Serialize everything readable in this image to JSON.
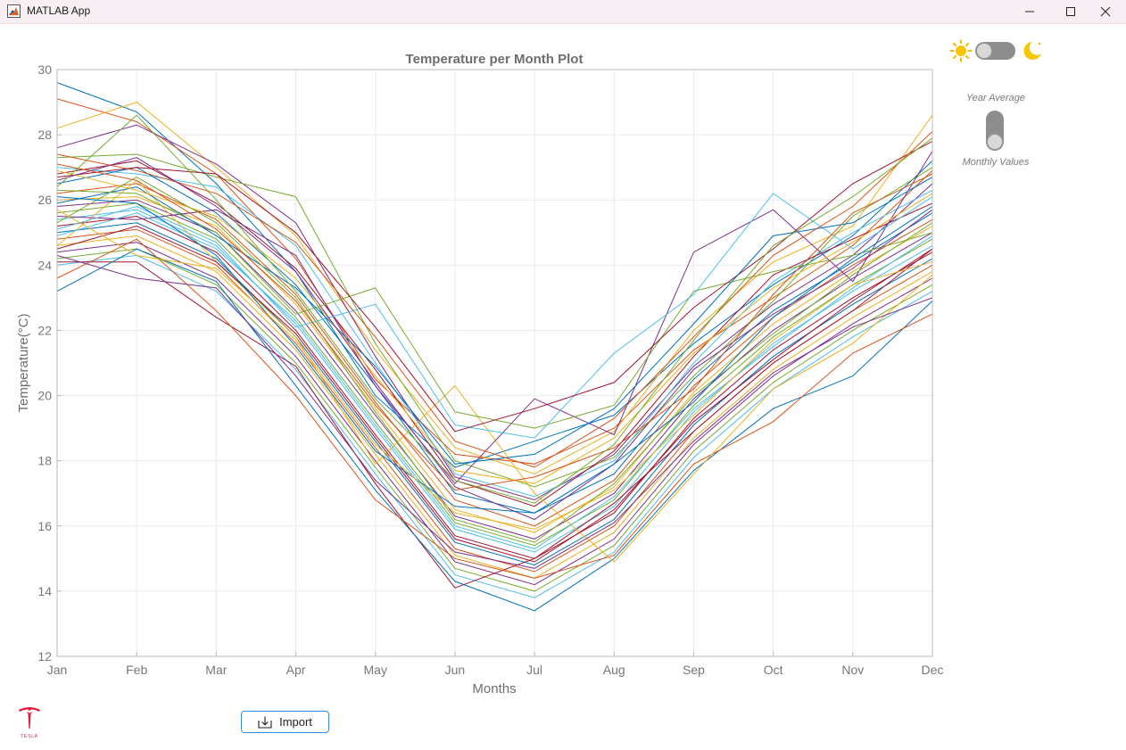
{
  "window": {
    "title": "MATLAB App"
  },
  "theme_toggle": {
    "left_icon": "sun-icon",
    "right_icon": "moon-icon",
    "state": "light"
  },
  "mode_switch": {
    "top_label": "Year Average",
    "bottom_label": "Monthly Values",
    "state": "Monthly Values"
  },
  "import_button": {
    "label": "Import",
    "icon": "import-icon"
  },
  "logo": {
    "brand_text": "TESLA",
    "color": "#e31937"
  },
  "chart_data": {
    "type": "line",
    "title": "Temperature per Month Plot",
    "xlabel": "Months",
    "ylabel": "Temperature(°C)",
    "categories": [
      "Jan",
      "Feb",
      "Mar",
      "Apr",
      "May",
      "Jun",
      "Jul",
      "Aug",
      "Sep",
      "Oct",
      "Nov",
      "Dec"
    ],
    "yticks": [
      12,
      14,
      16,
      18,
      20,
      22,
      24,
      26,
      28,
      30
    ],
    "ylim": [
      12,
      30
    ],
    "grid": true,
    "legend": "none",
    "colors": [
      "#0072BD",
      "#D95319",
      "#EDB120",
      "#7E2F8E",
      "#77AC30",
      "#4DBEEE",
      "#A2142F"
    ],
    "series": [
      {
        "values": [
          29.6,
          28.7,
          26.5,
          23.8,
          20.0,
          17.8,
          18.6,
          19.4,
          21.6,
          23.4,
          24.9,
          27.2
        ]
      },
      {
        "values": [
          29.1,
          28.4,
          26.8,
          24.2,
          20.5,
          18.2,
          17.9,
          19.0,
          21.4,
          23.0,
          24.6,
          26.9
        ]
      },
      {
        "values": [
          28.2,
          29.0,
          27.0,
          24.9,
          21.4,
          18.4,
          17.6,
          18.9,
          22.0,
          24.1,
          25.2,
          28.6
        ]
      },
      {
        "values": [
          27.6,
          28.3,
          27.1,
          25.3,
          21.2,
          17.5,
          16.8,
          18.2,
          20.9,
          22.8,
          24.3,
          26.5
        ]
      },
      {
        "values": [
          27.3,
          27.4,
          26.7,
          26.1,
          21.6,
          18.0,
          17.2,
          18.1,
          20.6,
          22.9,
          25.5,
          27.0
        ]
      },
      {
        "values": [
          27.0,
          26.8,
          26.4,
          24.6,
          21.0,
          17.6,
          16.9,
          18.0,
          21.0,
          23.5,
          25.0,
          26.3
        ]
      },
      {
        "values": [
          26.8,
          27.2,
          25.9,
          23.9,
          20.8,
          17.4,
          16.6,
          18.3,
          21.2,
          23.7,
          24.8,
          25.9
        ]
      },
      {
        "values": [
          26.5,
          27.0,
          25.6,
          23.4,
          20.3,
          17.0,
          16.4,
          17.6,
          20.5,
          22.6,
          24.1,
          25.6
        ]
      },
      {
        "values": [
          26.2,
          26.5,
          25.4,
          23.1,
          19.8,
          16.8,
          16.0,
          17.4,
          20.3,
          22.4,
          24.0,
          25.4
        ]
      },
      {
        "values": [
          26.0,
          26.1,
          25.2,
          22.8,
          19.6,
          16.5,
          15.8,
          17.2,
          20.1,
          22.2,
          23.8,
          25.2
        ]
      },
      {
        "values": [
          25.8,
          26.0,
          25.0,
          22.6,
          19.4,
          16.3,
          15.6,
          17.0,
          19.9,
          22.0,
          23.6,
          25.0
        ]
      },
      {
        "values": [
          25.6,
          25.9,
          24.8,
          22.4,
          19.2,
          16.1,
          15.4,
          16.8,
          19.7,
          21.8,
          23.4,
          24.8
        ]
      },
      {
        "values": [
          25.4,
          25.7,
          24.6,
          22.2,
          19.0,
          15.9,
          15.2,
          16.6,
          19.5,
          21.6,
          23.2,
          24.6
        ]
      },
      {
        "values": [
          25.2,
          25.5,
          24.4,
          22.0,
          18.8,
          15.7,
          15.0,
          16.4,
          19.3,
          21.4,
          23.0,
          24.4
        ]
      },
      {
        "values": [
          25.0,
          25.3,
          24.2,
          21.8,
          18.6,
          15.5,
          14.8,
          16.2,
          19.1,
          21.2,
          22.8,
          24.2
        ]
      },
      {
        "values": [
          24.8,
          25.1,
          24.0,
          21.6,
          18.4,
          15.3,
          14.6,
          16.0,
          18.9,
          21.0,
          22.6,
          24.0
        ]
      },
      {
        "values": [
          24.6,
          24.9,
          23.8,
          21.4,
          18.2,
          15.1,
          14.4,
          15.8,
          18.7,
          20.8,
          22.4,
          23.8
        ]
      },
      {
        "values": [
          24.4,
          24.7,
          23.6,
          21.2,
          18.0,
          14.9,
          14.2,
          15.6,
          18.5,
          20.6,
          22.2,
          23.6
        ]
      },
      {
        "values": [
          24.2,
          24.5,
          23.4,
          21.0,
          17.8,
          14.7,
          14.0,
          15.4,
          18.3,
          20.4,
          22.0,
          23.4
        ]
      },
      {
        "values": [
          24.0,
          24.3,
          23.2,
          20.8,
          17.6,
          14.5,
          13.8,
          15.2,
          18.1,
          20.2,
          21.8,
          23.2
        ]
      },
      {
        "values": [
          24.1,
          24.1,
          22.4,
          20.9,
          17.3,
          14.1,
          15.0,
          16.7,
          18.9,
          21.0,
          22.6,
          24.5
        ]
      },
      {
        "values": [
          23.2,
          24.5,
          23.5,
          20.3,
          17.1,
          14.3,
          13.4,
          15.0,
          17.7,
          19.6,
          20.6,
          22.9
        ]
      },
      {
        "values": [
          23.6,
          24.8,
          22.6,
          20.0,
          16.8,
          15.0,
          14.4,
          15.1,
          17.9,
          19.2,
          21.3,
          22.5
        ]
      },
      {
        "values": [
          24.6,
          26.6,
          24.1,
          21.8,
          17.9,
          20.3,
          17.0,
          14.9,
          17.6,
          20.2,
          21.6,
          23.7
        ]
      },
      {
        "values": [
          25.5,
          25.4,
          25.7,
          24.3,
          20.3,
          17.3,
          19.9,
          18.8,
          24.4,
          25.7,
          23.5,
          27.5
        ]
      },
      {
        "values": [
          26.3,
          26.2,
          25.0,
          22.5,
          23.3,
          19.5,
          19.0,
          19.7,
          23.2,
          23.8,
          24.3,
          25.0
        ]
      },
      {
        "values": [
          25.1,
          25.8,
          24.7,
          22.1,
          22.8,
          19.1,
          18.7,
          21.3,
          23.1,
          26.2,
          24.5,
          26.1
        ]
      },
      {
        "values": [
          26.7,
          27.0,
          26.8,
          25.0,
          22.1,
          18.9,
          19.6,
          20.4,
          22.7,
          24.5,
          26.5,
          27.8
        ]
      },
      {
        "values": [
          25.9,
          26.4,
          24.9,
          23.3,
          20.9,
          17.9,
          18.2,
          19.6,
          22.2,
          24.9,
          25.3,
          26.7
        ]
      },
      {
        "values": [
          27.4,
          26.9,
          26.2,
          24.7,
          21.8,
          18.6,
          17.8,
          19.3,
          21.8,
          24.3,
          25.8,
          28.1
        ]
      },
      {
        "values": [
          26.9,
          26.3,
          25.5,
          23.6,
          20.6,
          17.7,
          17.3,
          18.7,
          21.3,
          23.3,
          24.7,
          26.2
        ]
      },
      {
        "values": [
          26.6,
          27.3,
          25.8,
          23.8,
          20.4,
          17.2,
          16.2,
          17.9,
          20.8,
          22.5,
          23.9,
          25.7
        ]
      },
      {
        "values": [
          25.3,
          26.7,
          25.3,
          23.0,
          19.5,
          16.2,
          15.5,
          17.3,
          20.0,
          21.9,
          23.7,
          25.3
        ]
      },
      {
        "values": [
          24.9,
          25.6,
          24.5,
          22.3,
          19.1,
          16.0,
          15.3,
          16.9,
          19.6,
          21.5,
          23.3,
          24.9
        ]
      },
      {
        "values": [
          24.5,
          25.2,
          24.1,
          21.9,
          18.7,
          15.6,
          14.9,
          16.5,
          19.2,
          21.1,
          22.9,
          24.5
        ]
      },
      {
        "values": [
          26.1,
          25.9,
          24.3,
          21.5,
          18.3,
          16.6,
          16.4,
          17.9,
          19.8,
          22.4,
          24.2,
          25.8
        ]
      },
      {
        "values": [
          27.1,
          26.6,
          25.1,
          22.9,
          19.7,
          17.1,
          17.5,
          18.4,
          20.2,
          23.1,
          25.6,
          26.8
        ]
      },
      {
        "values": [
          25.7,
          24.3,
          23.9,
          21.7,
          18.5,
          16.4,
          15.9,
          17.1,
          19.4,
          21.7,
          23.4,
          24.1
        ]
      },
      {
        "values": [
          24.3,
          23.6,
          23.3,
          20.6,
          17.4,
          15.2,
          14.7,
          16.1,
          18.6,
          20.7,
          22.1,
          23.0
        ]
      },
      {
        "values": [
          26.4,
          28.6,
          26.0,
          23.2,
          19.9,
          17.4,
          16.7,
          18.5,
          21.7,
          24.6,
          26.1,
          27.9
        ]
      }
    ]
  }
}
